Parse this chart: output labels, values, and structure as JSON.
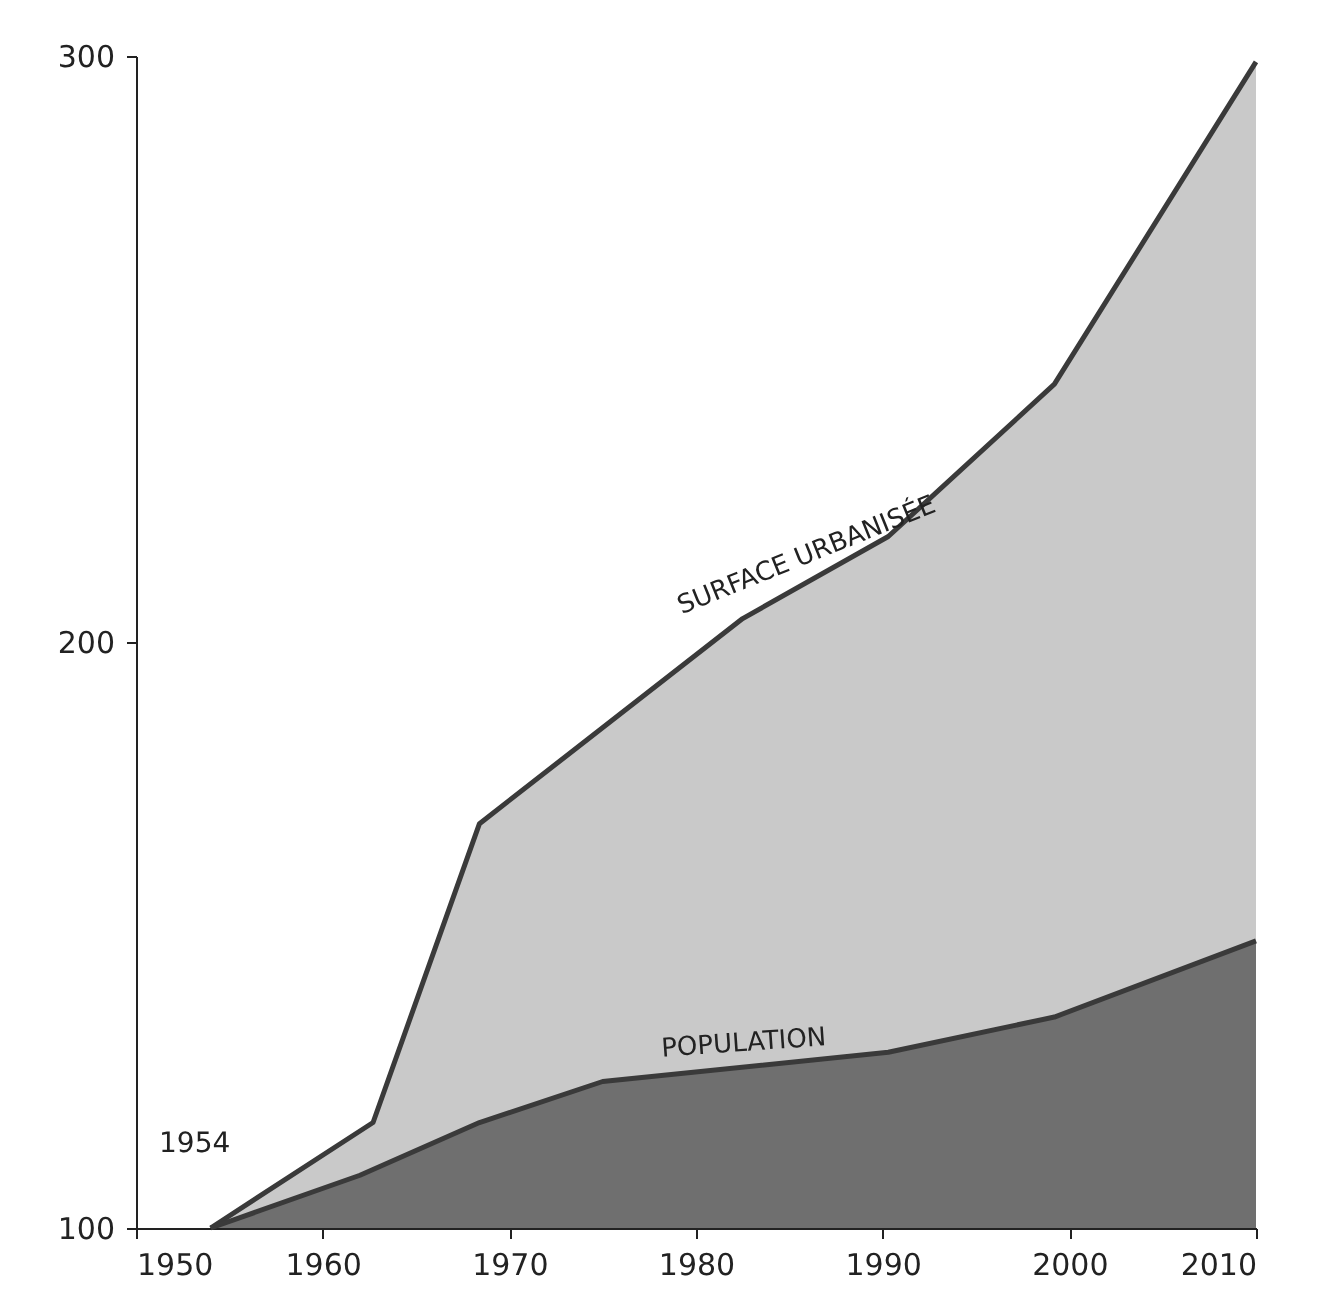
{
  "chart_data": {
    "type": "area",
    "x": [
      1954,
      1962.7,
      1968.4,
      1982.5,
      1990.3,
      1999.2,
      2010
    ],
    "series": [
      {
        "name": "SURFACE URBANISÉE",
        "color": "#c9c9c9",
        "values": [
          100,
          118,
          169,
          204,
          218,
          244,
          299
        ]
      },
      {
        "name": "POPULATION",
        "color": "#6f6f6f",
        "x": [
          1954,
          1962,
          1968.4,
          1975,
          1990.3,
          1999.2,
          2010
        ],
        "values": [
          100,
          109,
          118,
          125,
          130,
          136,
          149
        ]
      }
    ],
    "xlim": [
      1950,
      2010
    ],
    "xticks": [
      1950,
      1960,
      1970,
      1980,
      1990,
      2000,
      2010
    ],
    "ylim": [
      100,
      300
    ],
    "yticks": [
      100,
      200,
      300
    ],
    "grid": false,
    "annotations": [
      {
        "text": "1954",
        "x": 1954,
        "y": 100
      }
    ]
  }
}
